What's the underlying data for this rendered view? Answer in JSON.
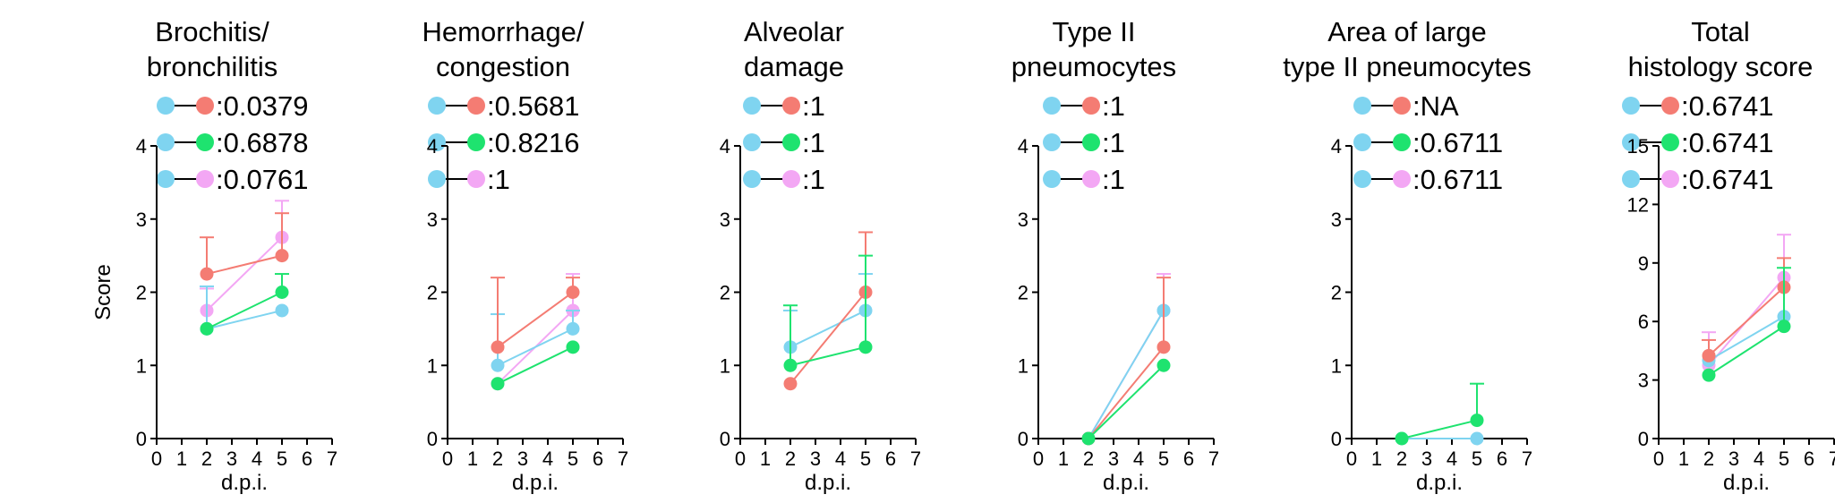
{
  "figure": {
    "ylabel": "Score",
    "xlabel": "d.p.i.",
    "colors": {
      "blue": "#7fd4f0",
      "red": "#f47c73",
      "green": "#1ee36f",
      "pink": "#f3a7f4"
    }
  },
  "chart_data": [
    {
      "type": "line",
      "title_lines": [
        "Brochitis/",
        "bronchilitis"
      ],
      "xlabel": "d.p.i.",
      "ylabel": "Score",
      "xlim": [
        0,
        7
      ],
      "xticks": [
        "0",
        "1",
        "2",
        "3",
        "4",
        "5",
        "6",
        "7"
      ],
      "ylim": [
        0,
        4
      ],
      "yticks": [
        "0",
        "1",
        "2",
        "3",
        "4"
      ],
      "x": [
        2,
        5
      ],
      "legend": [
        {
          "colors": [
            "blue",
            "red"
          ],
          "text": ":0.0379"
        },
        {
          "colors": [
            "blue",
            "green"
          ],
          "text": ":0.6878"
        },
        {
          "colors": [
            "blue",
            "pink"
          ],
          "text": ":0.0761"
        }
      ],
      "series": [
        {
          "color": "pink",
          "values": [
            1.75,
            2.75
          ],
          "errors": [
            0.3,
            0.5
          ]
        },
        {
          "color": "blue",
          "values": [
            1.5,
            1.75
          ],
          "errors": [
            0.58,
            0.0
          ]
        },
        {
          "color": "red",
          "values": [
            2.25,
            2.5
          ],
          "errors": [
            0.5,
            0.58
          ]
        },
        {
          "color": "green",
          "values": [
            1.5,
            2.0
          ],
          "errors": [
            0.0,
            0.25
          ]
        }
      ]
    },
    {
      "type": "line",
      "title_lines": [
        "Hemorrhage/",
        "congestion"
      ],
      "xlabel": "d.p.i.",
      "xlim": [
        0,
        7
      ],
      "xticks": [
        "0",
        "1",
        "2",
        "3",
        "4",
        "5",
        "6",
        "7"
      ],
      "ylim": [
        0,
        4
      ],
      "yticks": [
        "0",
        "1",
        "2",
        "3",
        "4"
      ],
      "x": [
        2,
        5
      ],
      "legend": [
        {
          "colors": [
            "blue",
            "red"
          ],
          "text": ":0.5681"
        },
        {
          "colors": [
            "blue",
            "green"
          ],
          "text": ":0.8216"
        },
        {
          "colors": [
            "blue",
            "pink"
          ],
          "text": ":1"
        }
      ],
      "series": [
        {
          "color": "pink",
          "values": [
            0.75,
            1.75
          ],
          "errors": [
            0.0,
            0.5
          ]
        },
        {
          "color": "blue",
          "values": [
            1.0,
            1.5
          ],
          "errors": [
            0.7,
            0.25
          ]
        },
        {
          "color": "red",
          "values": [
            1.25,
            2.0
          ],
          "errors": [
            0.95,
            0.2
          ]
        },
        {
          "color": "green",
          "values": [
            0.75,
            1.25
          ],
          "errors": [
            0.0,
            0.0
          ]
        }
      ]
    },
    {
      "type": "line",
      "title_lines": [
        "Alveolar",
        "damage"
      ],
      "xlabel": "d.p.i.",
      "xlim": [
        0,
        7
      ],
      "xticks": [
        "0",
        "1",
        "2",
        "3",
        "4",
        "5",
        "6",
        "7"
      ],
      "ylim": [
        0,
        4
      ],
      "yticks": [
        "0",
        "1",
        "2",
        "3",
        "4"
      ],
      "x": [
        2,
        5
      ],
      "legend": [
        {
          "colors": [
            "blue",
            "red"
          ],
          "text": ":1"
        },
        {
          "colors": [
            "blue",
            "green"
          ],
          "text": ":1"
        },
        {
          "colors": [
            "blue",
            "pink"
          ],
          "text": ":1"
        }
      ],
      "series": [
        {
          "color": "blue",
          "values": [
            1.25,
            1.75
          ],
          "errors": [
            0.5,
            0.5
          ]
        },
        {
          "color": "red",
          "values": [
            0.75,
            2.0
          ],
          "errors": [
            0.0,
            0.82
          ]
        },
        {
          "color": "green",
          "values": [
            1.0,
            1.25
          ],
          "errors": [
            0.82,
            1.25
          ]
        }
      ]
    },
    {
      "type": "line",
      "title_lines": [
        "Type II",
        "pneumocytes"
      ],
      "xlabel": "d.p.i.",
      "xlim": [
        0,
        7
      ],
      "xticks": [
        "0",
        "1",
        "2",
        "3",
        "4",
        "5",
        "6",
        "7"
      ],
      "ylim": [
        0,
        4
      ],
      "yticks": [
        "0",
        "1",
        "2",
        "3",
        "4"
      ],
      "x": [
        2,
        5
      ],
      "legend": [
        {
          "colors": [
            "blue",
            "red"
          ],
          "text": ":1"
        },
        {
          "colors": [
            "blue",
            "green"
          ],
          "text": ":1"
        },
        {
          "colors": [
            "blue",
            "pink"
          ],
          "text": ":1"
        }
      ],
      "series": [
        {
          "color": "pink",
          "values": [
            0.0,
            1.75
          ],
          "errors": [
            0.0,
            0.5
          ]
        },
        {
          "color": "blue",
          "values": [
            0.0,
            1.75
          ],
          "errors": [
            0.0,
            0.0
          ]
        },
        {
          "color": "red",
          "values": [
            0.0,
            1.25
          ],
          "errors": [
            0.0,
            0.95
          ]
        },
        {
          "color": "green",
          "values": [
            0.0,
            1.0
          ],
          "errors": [
            0.0,
            0.0
          ]
        }
      ]
    },
    {
      "type": "line",
      "title_lines": [
        "Area of large",
        "type II pneumocytes"
      ],
      "xlabel": "d.p.i.",
      "xlim": [
        0,
        7
      ],
      "xticks": [
        "0",
        "1",
        "2",
        "3",
        "4",
        "5",
        "6",
        "7"
      ],
      "ylim": [
        0,
        4
      ],
      "yticks": [
        "0",
        "1",
        "2",
        "3",
        "4"
      ],
      "x": [
        2,
        5
      ],
      "legend": [
        {
          "colors": [
            "blue",
            "red"
          ],
          "text": ":NA"
        },
        {
          "colors": [
            "blue",
            "green"
          ],
          "text": ":0.6711"
        },
        {
          "colors": [
            "blue",
            "pink"
          ],
          "text": ":0.6711"
        }
      ],
      "series": [
        {
          "color": "blue",
          "values": [
            0.0,
            0.0
          ],
          "errors": [
            0.0,
            0.0
          ]
        },
        {
          "color": "green",
          "values": [
            0.0,
            0.25
          ],
          "errors": [
            0.0,
            0.5
          ]
        }
      ]
    },
    {
      "type": "line",
      "title_lines": [
        "Total",
        "histology score"
      ],
      "xlabel": "d.p.i.",
      "xlim": [
        0,
        7
      ],
      "xticks": [
        "0",
        "1",
        "2",
        "3",
        "4",
        "5",
        "6",
        "7"
      ],
      "ylim": [
        0,
        15
      ],
      "yticks": [
        "0",
        "3",
        "6",
        "9",
        "12",
        "15"
      ],
      "x": [
        2,
        5
      ],
      "legend": [
        {
          "colors": [
            "blue",
            "red"
          ],
          "text": ":0.6741"
        },
        {
          "colors": [
            "blue",
            "green"
          ],
          "text": ":0.6741"
        },
        {
          "colors": [
            "blue",
            "pink"
          ],
          "text": ":0.6741"
        }
      ],
      "series": [
        {
          "color": "pink",
          "values": [
            3.75,
            8.25
          ],
          "errors": [
            1.7,
            2.2
          ]
        },
        {
          "color": "blue",
          "values": [
            4.0,
            6.25
          ],
          "errors": [
            0.0,
            0.0
          ]
        },
        {
          "color": "red",
          "values": [
            4.25,
            7.75
          ],
          "errors": [
            0.8,
            1.5
          ]
        },
        {
          "color": "green",
          "values": [
            3.25,
            5.75
          ],
          "errors": [
            0.0,
            3.0
          ]
        }
      ]
    }
  ]
}
